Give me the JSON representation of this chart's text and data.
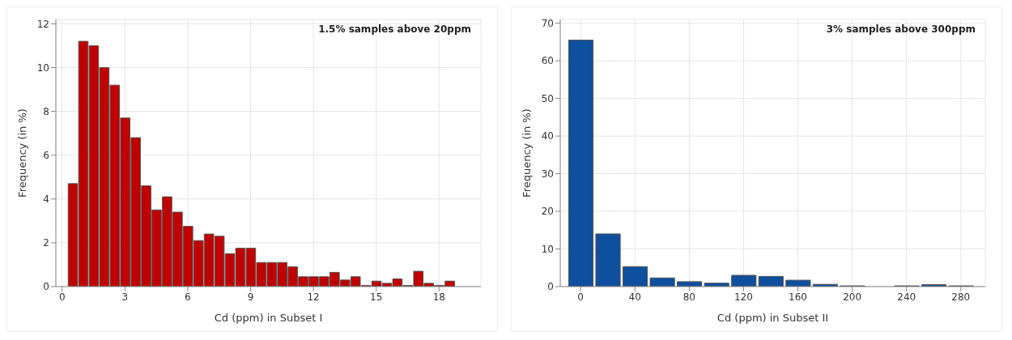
{
  "chart_data": [
    {
      "type": "histogram",
      "xlabel": "Cd (ppm) in Subset I",
      "ylabel": "Frequency (in %)",
      "annotations": [
        "1.5% samples above 20ppm"
      ],
      "color": "#c00000",
      "bins": [
        0.25,
        0.75,
        1.25,
        1.75,
        2.25,
        2.75,
        3.25,
        3.75,
        4.25,
        4.75,
        5.25,
        5.75,
        6.25,
        6.75,
        7.25,
        7.75,
        8.25,
        8.75,
        9.25,
        9.75,
        10.25,
        10.75,
        11.25,
        11.75,
        12.25,
        12.75,
        13.25,
        13.75,
        14.25,
        14.75,
        15.25,
        15.75,
        16.25,
        16.75,
        17.25,
        17.75,
        18.25,
        18.75
      ],
      "values": [
        4.7,
        11.2,
        11.0,
        10.0,
        9.2,
        7.7,
        6.8,
        4.6,
        3.5,
        4.1,
        3.4,
        2.75,
        2.1,
        2.4,
        2.3,
        1.5,
        1.75,
        1.75,
        1.1,
        1.1,
        1.1,
        0.9,
        0.45,
        0.45,
        0.45,
        0.65,
        0.3,
        0.45,
        0.05,
        0.25,
        0.15,
        0.35,
        0.05,
        0.7,
        0.15,
        0.05,
        0.25
      ],
      "xlim": [
        -0.3,
        20
      ],
      "xticks": [
        0,
        3,
        6,
        9,
        12,
        15,
        18
      ],
      "ylim": [
        0,
        12.2
      ],
      "yticks": [
        0,
        2,
        4,
        6,
        8,
        10,
        12
      ],
      "grid": true
    },
    {
      "type": "histogram",
      "xlabel": "Cd (ppm) in Subset II",
      "ylabel": "Frequency (in %)",
      "annotations": [
        "3% samples above 300ppm"
      ],
      "color": "#0e4f9e",
      "bins": [
        -10,
        10,
        30,
        50,
        70,
        90,
        110,
        130,
        150,
        170,
        190,
        210,
        230,
        250,
        270,
        290
      ],
      "values": [
        65.5,
        14,
        5.3,
        2.3,
        1.3,
        0.9,
        3.0,
        2.7,
        1.7,
        0.6,
        0.2,
        0,
        0.2,
        0.5,
        0.2
      ],
      "xlim": [
        -15,
        298
      ],
      "xticks": [
        0,
        40,
        80,
        120,
        160,
        200,
        240,
        280
      ],
      "ylim": [
        0,
        71
      ],
      "yticks": [
        0,
        10,
        20,
        30,
        40,
        50,
        60,
        70
      ],
      "grid": true
    }
  ]
}
